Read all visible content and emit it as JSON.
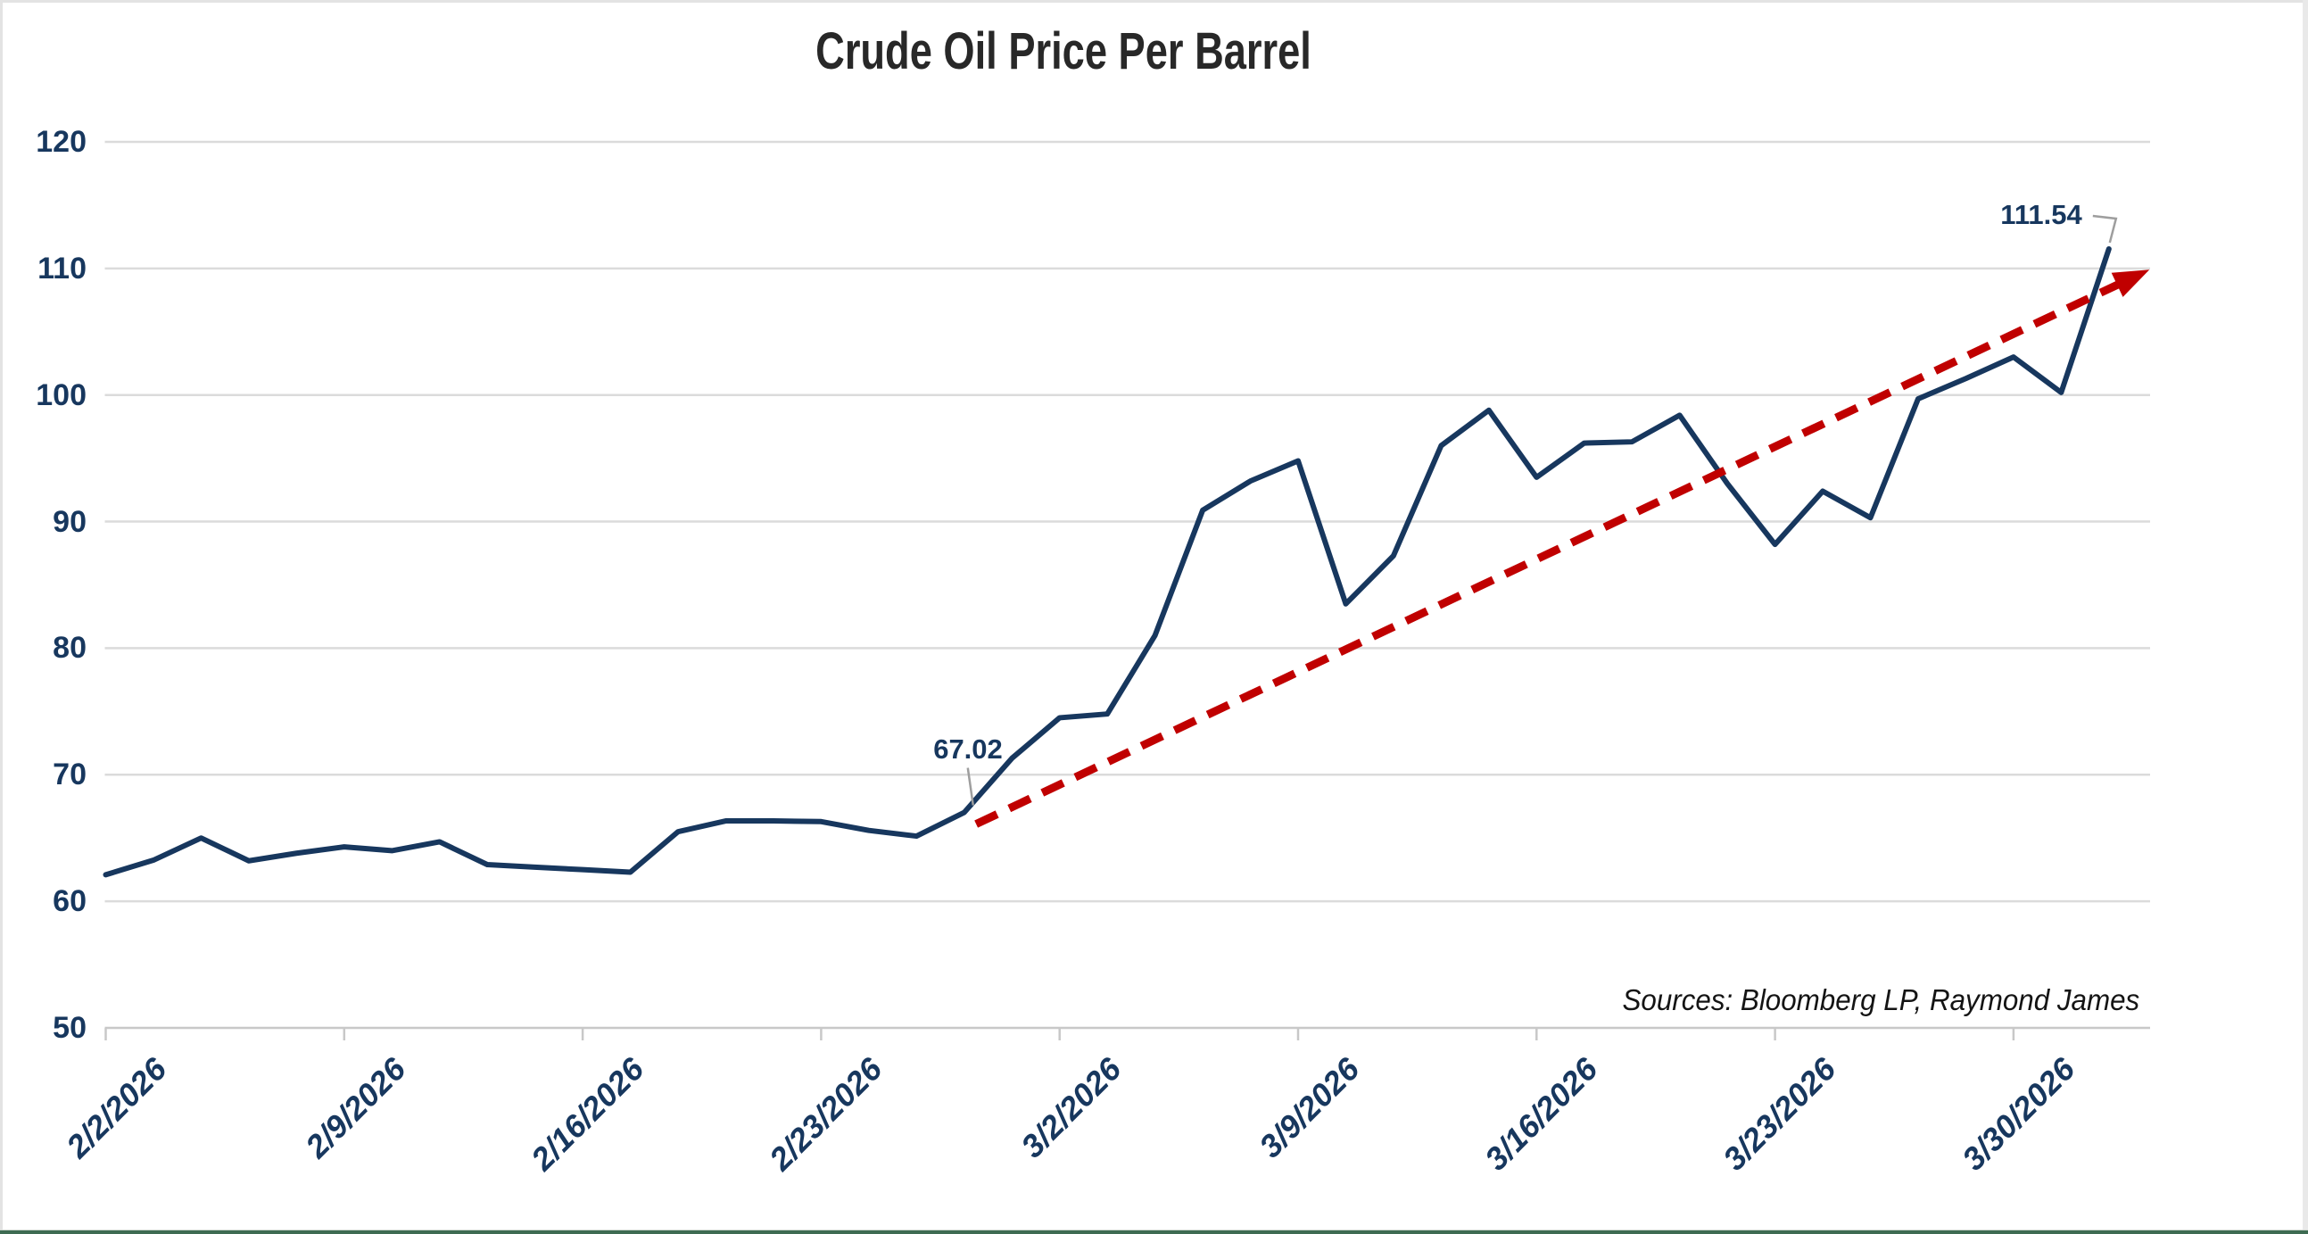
{
  "window": {
    "border_bottom_color": "#3e6b52",
    "border_side_color": "#e9e9e9"
  },
  "chart_data": {
    "type": "line",
    "title": "Crude Oil Price Per Barrel",
    "source_note": "Sources: Bloomberg LP, Raymond James",
    "series_name": "Crude Oil Price Per Barrel",
    "ylim": [
      50,
      120
    ],
    "y_ticks": [
      120,
      110,
      100,
      90,
      80,
      70,
      60,
      50
    ],
    "grid": "horizontal",
    "legend": "none",
    "line_color": "#17375e",
    "label_color": "#17375e",
    "gridline_color": "#dbdbdb",
    "x_tick_labels": [
      "2/2/2026",
      "2/9/2026",
      "2/16/2026",
      "2/23/2026",
      "3/2/2026",
      "3/9/2026",
      "3/16/2026",
      "3/23/2026",
      "3/30/2026"
    ],
    "dates": [
      "2/2/2026",
      "2/3/2026",
      "2/4/2026",
      "2/5/2026",
      "2/6/2026",
      "2/9/2026",
      "2/10/2026",
      "2/11/2026",
      "2/12/2026",
      "2/13/2026",
      "2/16/2026",
      "2/17/2026",
      "2/18/2026",
      "2/19/2026",
      "2/20/2026",
      "2/23/2026",
      "2/24/2026",
      "2/25/2026",
      "2/26/2026",
      "2/27/2026",
      "3/2/2026",
      "3/3/2026",
      "3/4/2026",
      "3/5/2026",
      "3/6/2026",
      "3/9/2026",
      "3/10/2026",
      "3/11/2026",
      "3/12/2026",
      "3/13/2026",
      "3/16/2026",
      "3/17/2026",
      "3/18/2026",
      "3/19/2026",
      "3/20/2026",
      "3/23/2026",
      "3/24/2026",
      "3/25/2026",
      "3/26/2026",
      "3/27/2026",
      "3/30/2026",
      "3/31/2026",
      "4/1/2026"
    ],
    "values": [
      62.1,
      63.25,
      65.0,
      63.2,
      63.8,
      64.3,
      64.0,
      64.7,
      62.9,
      62.7,
      62.5,
      62.3,
      65.5,
      66.35,
      66.35,
      66.3,
      65.6,
      65.15,
      67.02,
      71.3,
      74.5,
      74.8,
      81.0,
      90.9,
      93.2,
      94.8,
      83.5,
      87.3,
      96.0,
      98.8,
      93.5,
      96.2,
      96.3,
      98.4,
      93.0,
      88.2,
      92.4,
      90.3,
      99.7,
      101.3,
      103.0,
      100.2,
      111.54
    ],
    "trendline": {
      "style": "dashed-arrow",
      "color": "#c00000",
      "from": {
        "day_index": 18.25,
        "value": 66.1
      },
      "to": {
        "day_index": 42.85,
        "value": 109.9
      }
    },
    "annotations": [
      {
        "label": "67.02",
        "day_index": 18,
        "value": 67.02
      },
      {
        "label": "111.54",
        "day_index": 42,
        "value": 111.54
      }
    ]
  }
}
